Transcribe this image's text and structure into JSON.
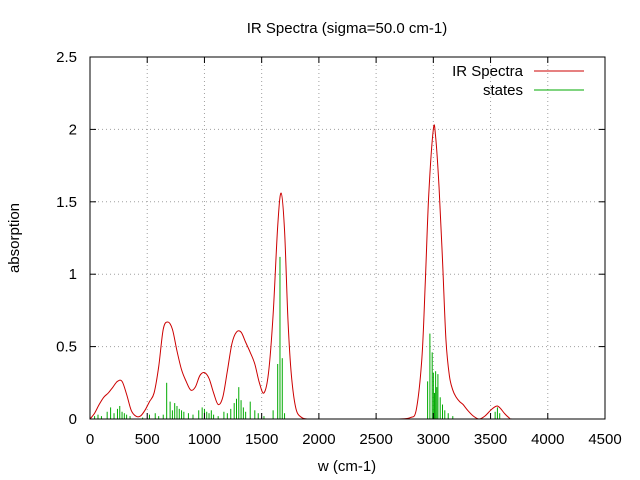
{
  "chart_data": {
    "type": "line",
    "title": "IR Spectra (sigma=50.0 cm-1)",
    "xlabel": "w (cm-1)",
    "ylabel": "absorption",
    "xlim": [
      0,
      4500
    ],
    "ylim": [
      0,
      2.5
    ],
    "xticks": [
      0,
      500,
      1000,
      1500,
      2000,
      2500,
      3000,
      3500,
      4000,
      4500
    ],
    "yticks": [
      0,
      0.5,
      1,
      1.5,
      2,
      2.5
    ],
    "xtick_labels": [
      "0",
      "500",
      "1000",
      "1500",
      "2000",
      "2500",
      "3000",
      "3500",
      "4000",
      "4500"
    ],
    "ytick_labels": [
      "0",
      "0.5",
      "1",
      "1.5",
      "2",
      "2.5"
    ],
    "grid": true,
    "legend_position": "top-right",
    "colors": {
      "IR Spectra": "#cc0000",
      "states": "#00aa00"
    },
    "series": [
      {
        "name": "IR Spectra",
        "style": "line",
        "x": [
          0,
          40,
          80,
          120,
          160,
          200,
          240,
          280,
          320,
          360,
          400,
          440,
          480,
          520,
          560,
          600,
          640,
          680,
          720,
          760,
          800,
          840,
          880,
          920,
          960,
          1000,
          1040,
          1080,
          1120,
          1160,
          1200,
          1240,
          1280,
          1320,
          1360,
          1400,
          1440,
          1480,
          1520,
          1560,
          1600,
          1640,
          1670,
          1700,
          1730,
          1760,
          1800,
          1850,
          1900,
          2000,
          2500,
          2700,
          2800,
          2850,
          2900,
          2930,
          2960,
          3000,
          3020,
          3050,
          3080,
          3110,
          3140,
          3170,
          3200,
          3230,
          3260,
          3300,
          3350,
          3400,
          3450,
          3500,
          3530,
          3560,
          3590,
          3620,
          3660,
          3700,
          4000,
          4300
        ],
        "y": [
          0.0,
          0.04,
          0.1,
          0.15,
          0.18,
          0.22,
          0.26,
          0.26,
          0.17,
          0.06,
          0.02,
          0.02,
          0.06,
          0.12,
          0.18,
          0.36,
          0.62,
          0.67,
          0.62,
          0.47,
          0.34,
          0.26,
          0.2,
          0.22,
          0.3,
          0.32,
          0.28,
          0.18,
          0.1,
          0.15,
          0.33,
          0.52,
          0.6,
          0.6,
          0.53,
          0.46,
          0.38,
          0.25,
          0.18,
          0.32,
          0.72,
          1.33,
          1.56,
          1.3,
          0.68,
          0.3,
          0.07,
          0.01,
          0.0,
          0.0,
          0.0,
          0.0,
          0.01,
          0.06,
          0.42,
          0.95,
          1.55,
          2.0,
          1.95,
          1.6,
          1.1,
          0.55,
          0.3,
          0.2,
          0.15,
          0.12,
          0.1,
          0.06,
          0.02,
          0.0,
          0.02,
          0.06,
          0.08,
          0.09,
          0.07,
          0.04,
          0.01,
          0.0,
          0.0,
          0.0
        ]
      },
      {
        "name": "states",
        "style": "impulses",
        "x": [
          40,
          70,
          100,
          150,
          180,
          210,
          240,
          260,
          280,
          300,
          320,
          350,
          460,
          520,
          570,
          600,
          640,
          670,
          700,
          720,
          740,
          760,
          780,
          800,
          820,
          860,
          900,
          950,
          980,
          1000,
          1020,
          1040,
          1060,
          1080,
          1120,
          1170,
          1200,
          1230,
          1260,
          1280,
          1300,
          1320,
          1340,
          1360,
          1400,
          1440,
          1470,
          1520,
          1600,
          1640,
          1660,
          1680,
          1700,
          2950,
          2970,
          2990,
          3000,
          3010,
          3020,
          3030,
          3040,
          3060,
          3080,
          3100,
          3130,
          3170,
          3540,
          3560,
          3580
        ],
        "y": [
          0.02,
          0.03,
          0.02,
          0.05,
          0.08,
          0.04,
          0.07,
          0.09,
          0.05,
          0.04,
          0.03,
          0.02,
          0.01,
          0.03,
          0.04,
          0.02,
          0.03,
          0.25,
          0.12,
          0.06,
          0.11,
          0.09,
          0.07,
          0.06,
          0.05,
          0.04,
          0.03,
          0.06,
          0.08,
          0.07,
          0.05,
          0.04,
          0.06,
          0.03,
          0.02,
          0.05,
          0.04,
          0.07,
          0.11,
          0.14,
          0.22,
          0.13,
          0.08,
          0.05,
          0.12,
          0.06,
          0.04,
          0.02,
          0.06,
          0.38,
          1.12,
          0.42,
          0.04,
          0.26,
          0.59,
          0.46,
          0.32,
          0.18,
          0.33,
          0.22,
          0.31,
          0.15,
          0.1,
          0.06,
          0.04,
          0.02,
          0.05,
          0.08,
          0.04
        ]
      }
    ]
  }
}
